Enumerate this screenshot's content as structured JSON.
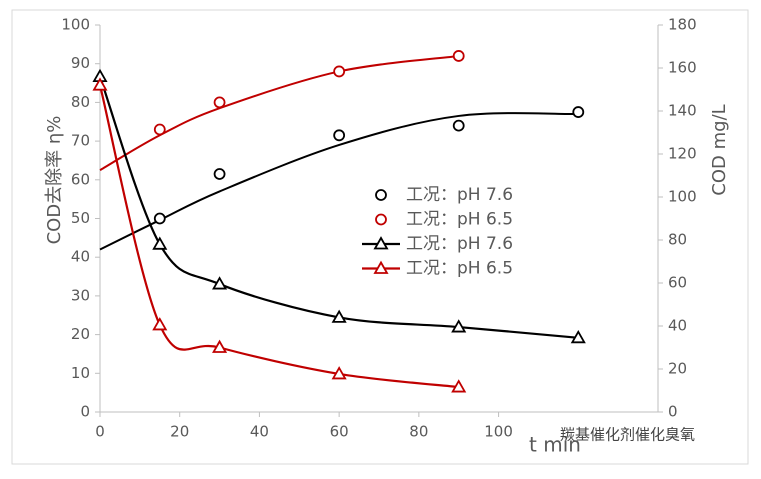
{
  "chart_data": {
    "type": "line",
    "y_label": "COD去除率 η%",
    "y2_label": "COD mg/L",
    "x_label": "t min",
    "watermark": "羰基催化剂催化臭氧",
    "xlim": [
      0,
      140
    ],
    "xticks": [
      0,
      20,
      40,
      60,
      80,
      100
    ],
    "ylim": [
      0,
      100
    ],
    "yticks": [
      0,
      10,
      20,
      30,
      40,
      50,
      60,
      70,
      80,
      90,
      100
    ],
    "y2lim": [
      0,
      180
    ],
    "y2ticks": [
      0,
      20,
      40,
      60,
      80,
      100,
      120,
      140,
      160,
      180
    ],
    "series": [
      {
        "name": "工况：pH 7.6",
        "color": "#000000",
        "marker": "circle",
        "line": false,
        "x": [
          15,
          30,
          60,
          90,
          120
        ],
        "values": [
          50,
          61.5,
          71.5,
          74,
          77.5
        ],
        "trend": {
          "x": [
            0,
            15,
            30,
            60,
            90,
            120
          ],
          "values": [
            42,
            49.6,
            57,
            69,
            76.5,
            77
          ]
        }
      },
      {
        "name": "工况：pH 6.5",
        "color": "#c00000",
        "marker": "circle",
        "line": false,
        "x": [
          15,
          30,
          60,
          90
        ],
        "values": [
          73,
          80,
          88,
          92
        ],
        "trend": {
          "x": [
            0,
            15,
            30,
            60,
            90
          ],
          "values": [
            62.5,
            71.5,
            78.5,
            88,
            92
          ]
        }
      },
      {
        "name": "工况：pH 7.6",
        "color": "#000000",
        "marker": "triangle",
        "line": true,
        "axis": "y2",
        "x": [
          0,
          15,
          30,
          60,
          90,
          120
        ],
        "values": [
          156,
          78,
          59.5,
          44,
          39.5,
          34.5
        ]
      },
      {
        "name": "工况：pH 6.5",
        "color": "#c00000",
        "marker": "triangle",
        "line": true,
        "axis": "y2",
        "x": [
          0,
          15,
          30,
          60,
          90
        ],
        "values": [
          152,
          40.5,
          30,
          17.7,
          11.6
        ]
      }
    ]
  }
}
